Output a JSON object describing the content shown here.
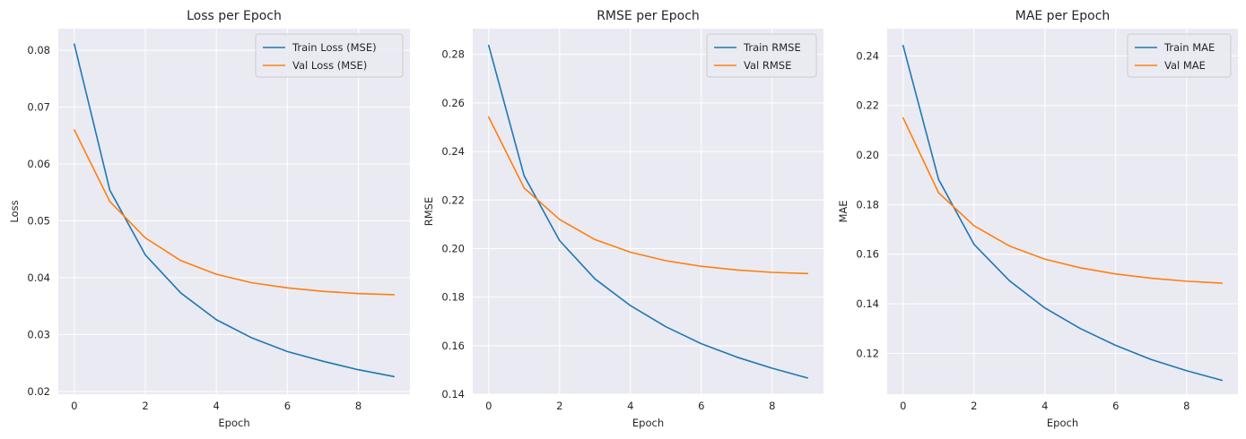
{
  "colors": {
    "axes_bg": "#eaeaf2",
    "grid": "#ffffff",
    "train": "#1f77b4",
    "val": "#ff7f0e",
    "text": "#262626"
  },
  "chart_data": [
    {
      "type": "line",
      "title": "Loss per Epoch",
      "xlabel": "Epoch",
      "ylabel": "Loss",
      "x": [
        0,
        1,
        2,
        3,
        4,
        5,
        6,
        7,
        8,
        9
      ],
      "xlim": [
        -0.45,
        9.45
      ],
      "ylim": [
        0.0195,
        0.0838
      ],
      "xticks": [
        0,
        2,
        4,
        6,
        8
      ],
      "xtick_labels": [
        "0",
        "2",
        "4",
        "6",
        "8"
      ],
      "yticks": [
        0.02,
        0.03,
        0.04,
        0.05,
        0.06,
        0.07,
        0.08
      ],
      "ytick_labels": [
        "0.02",
        "0.03",
        "0.04",
        "0.05",
        "0.06",
        "0.07",
        "0.08"
      ],
      "grid": true,
      "legend_position": "top-right",
      "series": [
        {
          "name": "Train Loss (MSE)",
          "color_key": "train",
          "values": [
            0.0811,
            0.0554,
            0.044,
            0.0373,
            0.0326,
            0.0294,
            0.027,
            0.0253,
            0.0238,
            0.0226
          ]
        },
        {
          "name": "Val Loss (MSE)",
          "color_key": "val",
          "values": [
            0.066,
            0.0534,
            0.047,
            0.043,
            0.0406,
            0.0391,
            0.0382,
            0.0376,
            0.0372,
            0.037
          ]
        }
      ]
    },
    {
      "type": "line",
      "title": "RMSE per Epoch",
      "xlabel": "Epoch",
      "ylabel": "RMSE",
      "x": [
        0,
        1,
        2,
        3,
        4,
        5,
        6,
        7,
        8,
        9
      ],
      "xlim": [
        -0.45,
        9.45
      ],
      "ylim": [
        0.14,
        0.2906
      ],
      "xticks": [
        0,
        2,
        4,
        6,
        8
      ],
      "xtick_labels": [
        "0",
        "2",
        "4",
        "6",
        "8"
      ],
      "yticks": [
        0.14,
        0.16,
        0.18,
        0.2,
        0.22,
        0.24,
        0.26,
        0.28
      ],
      "ytick_labels": [
        "0.14",
        "0.16",
        "0.18",
        "0.20",
        "0.22",
        "0.24",
        "0.26",
        "0.28"
      ],
      "grid": true,
      "legend_position": "top-right",
      "series": [
        {
          "name": "Train RMSE",
          "color_key": "train",
          "values": [
            0.2837,
            0.23,
            0.2033,
            0.1875,
            0.1765,
            0.1678,
            0.1608,
            0.1553,
            0.1507,
            0.1467
          ]
        },
        {
          "name": "Val RMSE",
          "color_key": "val",
          "values": [
            0.2542,
            0.225,
            0.212,
            0.2037,
            0.1985,
            0.195,
            0.1927,
            0.1912,
            0.1902,
            0.1897
          ]
        }
      ]
    },
    {
      "type": "line",
      "title": "MAE per Epoch",
      "xlabel": "Epoch",
      "ylabel": "MAE",
      "x": [
        0,
        1,
        2,
        3,
        4,
        5,
        6,
        7,
        8,
        9
      ],
      "xlim": [
        -0.45,
        9.45
      ],
      "ylim": [
        0.1035,
        0.251
      ],
      "xticks": [
        0,
        2,
        4,
        6,
        8
      ],
      "xtick_labels": [
        "0",
        "2",
        "4",
        "6",
        "8"
      ],
      "yticks": [
        0.12,
        0.14,
        0.16,
        0.18,
        0.2,
        0.22,
        0.24
      ],
      "ytick_labels": [
        "0.12",
        "0.14",
        "0.16",
        "0.18",
        "0.20",
        "0.22",
        "0.24"
      ],
      "grid": true,
      "legend_position": "top-right",
      "series": [
        {
          "name": "Train MAE",
          "color_key": "train",
          "values": [
            0.2442,
            0.1902,
            0.164,
            0.1493,
            0.1383,
            0.13,
            0.1232,
            0.1175,
            0.113,
            0.1091
          ]
        },
        {
          "name": "Val MAE",
          "color_key": "val",
          "values": [
            0.215,
            0.1848,
            0.1715,
            0.1633,
            0.158,
            0.1545,
            0.152,
            0.1503,
            0.1491,
            0.1483
          ]
        }
      ]
    }
  ]
}
